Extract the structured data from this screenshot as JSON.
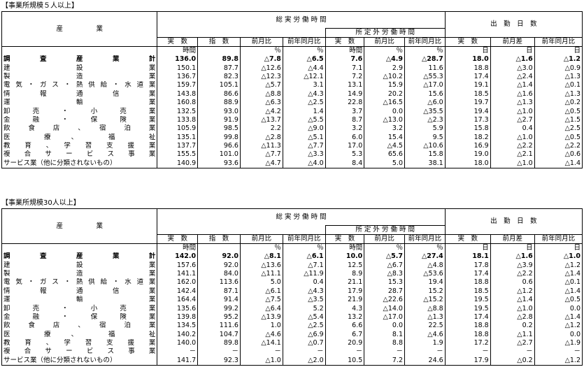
{
  "tables": [
    {
      "title": "【事業所規模５人以上】",
      "rows": [
        {
          "ind": "調　査　産　業　計",
          "bold": true,
          "v": [
            "136.0",
            "89.8",
            "△7.8",
            "△6.5",
            "7.6",
            "△4.9",
            "△28.7",
            "18.0",
            "△1.6",
            "△1.2"
          ]
        },
        {
          "ind": "建　　　設　　　業",
          "v": [
            "150.1",
            "87.7",
            "△12.6",
            "△4.4",
            "7.1",
            "2.9",
            "11.6",
            "18.8",
            "△3.0",
            "△0.9"
          ]
        },
        {
          "ind": "製　　　造　　　業",
          "v": [
            "136.7",
            "82.3",
            "△12.3",
            "△12.1",
            "7.2",
            "△10.2",
            "△55.3",
            "17.4",
            "△2.4",
            "△1.3"
          ]
        },
        {
          "ind": "電気・ガス・熱供給・水道業",
          "v": [
            "159.7",
            "105.1",
            "△5.7",
            "3.1",
            "13.1",
            "15.9",
            "△17.0",
            "19.1",
            "△1.4",
            "△0.1"
          ]
        },
        {
          "ind": "情　報　通　信　業",
          "v": [
            "143.8",
            "86.6",
            "△8.8",
            "△4.3",
            "14.9",
            "20.2",
            "15.6",
            "18.5",
            "△1.6",
            "△1.3"
          ]
        },
        {
          "ind": "運　　　輸　　　業",
          "v": [
            "160.8",
            "88.9",
            "△6.3",
            "△2.5",
            "22.8",
            "△16.5",
            "△6.0",
            "19.7",
            "△1.3",
            "△0.2"
          ]
        },
        {
          "ind": "卸　売　・　小　売　業",
          "v": [
            "132.5",
            "93.0",
            "△4.2",
            "1.4",
            "3.7",
            "0.0",
            "△35.5",
            "19.4",
            "△1.0",
            "△0.5"
          ]
        },
        {
          "ind": "金　融　・　保　険　業",
          "v": [
            "133.8",
            "91.9",
            "△13.7",
            "△5.5",
            "8.7",
            "△13.0",
            "△2.3",
            "17.3",
            "△2.7",
            "△1.5"
          ]
        },
        {
          "ind": "飲　食　店　、　宿　泊　業",
          "v": [
            "105.9",
            "98.5",
            "2.2",
            "△9.0",
            "3.2",
            "3.2",
            "5.9",
            "15.8",
            "0.4",
            "△2.5"
          ]
        },
        {
          "ind": "医　　療　、　　福　　祉",
          "v": [
            "135.1",
            "99.8",
            "△2.8",
            "△5.1",
            "6.0",
            "15.4",
            "9.5",
            "18.2",
            "△1.0",
            "△0.5"
          ]
        },
        {
          "ind": "教　育　、　学　習　支　援　業",
          "v": [
            "137.7",
            "96.6",
            "△11.3",
            "△7.7",
            "17.0",
            "△4.5",
            "△10.6",
            "16.9",
            "△2.2",
            "△2.2"
          ]
        },
        {
          "ind": "複　合　サ　ー　ビ　ス　事　業",
          "v": [
            "155.5",
            "101.0",
            "△7.7",
            "△3.3",
            "5.3",
            "65.6",
            "15.8",
            "19.0",
            "△2.1",
            "△0.6"
          ]
        },
        {
          "ind": "サービス業（他に分類されないもの）",
          "left": true,
          "v": [
            "140.9",
            "93.6",
            "△4.7",
            "△4.0",
            "8.4",
            "5.0",
            "38.1",
            "18.0",
            "△1.0",
            "△1.4"
          ]
        }
      ]
    },
    {
      "title": "【事業所規模30人以上】",
      "rows": [
        {
          "ind": "調　査　産　業　計",
          "bold": true,
          "v": [
            "142.0",
            "92.0",
            "△8.1",
            "△6.1",
            "10.0",
            "△5.7",
            "△27.4",
            "18.1",
            "△1.6",
            "△1.0"
          ]
        },
        {
          "ind": "建　　　設　　　業",
          "v": [
            "157.6",
            "92.0",
            "△13.6",
            "△7.1",
            "12.5",
            "△6.7",
            "△4.8",
            "17.8",
            "△3.9",
            "△1.2"
          ]
        },
        {
          "ind": "製　　　造　　　業",
          "v": [
            "141.1",
            "84.0",
            "△11.1",
            "△11.9",
            "8.9",
            "△8.3",
            "△53.6",
            "17.4",
            "△2.2",
            "△1.4"
          ]
        },
        {
          "ind": "電気・ガス・熱供給・水道業",
          "v": [
            "162.0",
            "113.6",
            "5.0",
            "0.4",
            "21.1",
            "15.3",
            "19.4",
            "18.8",
            "0.6",
            "△0.1"
          ]
        },
        {
          "ind": "情　報　通　信　業",
          "v": [
            "142.4",
            "87.1",
            "△6.1",
            "△4.3",
            "17.9",
            "28.7",
            "15.2",
            "18.5",
            "△1.2",
            "△1.4"
          ]
        },
        {
          "ind": "運　　　輸　　　業",
          "v": [
            "164.4",
            "91.4",
            "△7.5",
            "△3.5",
            "21.9",
            "△22.6",
            "△15.2",
            "19.5",
            "△1.4",
            "△0.5"
          ]
        },
        {
          "ind": "卸　売　・　小　売　業",
          "v": [
            "135.6",
            "99.2",
            "△6.4",
            "5.2",
            "4.3",
            "△14.0",
            "△8.8",
            "19.5",
            "△1.0",
            "0.0"
          ]
        },
        {
          "ind": "金　融　・　保　険　業",
          "v": [
            "139.8",
            "95.2",
            "△13.9",
            "△5.4",
            "13.2",
            "△17.0",
            "△1.3",
            "17.4",
            "△2.8",
            "△1.4"
          ]
        },
        {
          "ind": "飲　食　店　、　宿　泊　業",
          "v": [
            "134.5",
            "111.6",
            "1.0",
            "△2.5",
            "6.6",
            "0.0",
            "22.5",
            "18.8",
            "0.2",
            "△1.2"
          ]
        },
        {
          "ind": "医　　療　、　　福　　祉",
          "v": [
            "140.2",
            "104.7",
            "△4.6",
            "△6.9",
            "6.7",
            "8.1",
            "△4.6",
            "18.8",
            "△1.1",
            "0.0"
          ]
        },
        {
          "ind": "教　育　、　学　習　支　援　業",
          "v": [
            "140.0",
            "89.8",
            "△14.1",
            "△0.7",
            "20.9",
            "8.8",
            "1.9",
            "17.2",
            "△2.7",
            "△1.9"
          ]
        },
        {
          "ind": "複　合　サ　ー　ビ　ス　事　業",
          "v": [
            "－",
            "－",
            "－",
            "－",
            "－",
            "－",
            "－",
            "－",
            "－",
            "－"
          ]
        },
        {
          "ind": "サービス業（他に分類されないもの）",
          "left": true,
          "v": [
            "141.7",
            "92.3",
            "△1.0",
            "△2.0",
            "10.5",
            "7.2",
            "24.6",
            "17.9",
            "△0.2",
            "△1.2"
          ]
        }
      ]
    }
  ],
  "header": {
    "industry": "産　　　　　業",
    "total_hours": "総 実 労 働 時 間",
    "workdays": "出　勤　日　数",
    "overtime": "所 定 外 労 働 時 間",
    "actual": "実　数",
    "index": "指　数",
    "mom": "前月比",
    "yoy": "前年同月比",
    "mom_diff": "前月差",
    "yoy_diff": "前年同月比"
  },
  "units": [
    "時間",
    "",
    "％",
    "％",
    "時間",
    "％",
    "％",
    "日",
    "日",
    "日"
  ]
}
